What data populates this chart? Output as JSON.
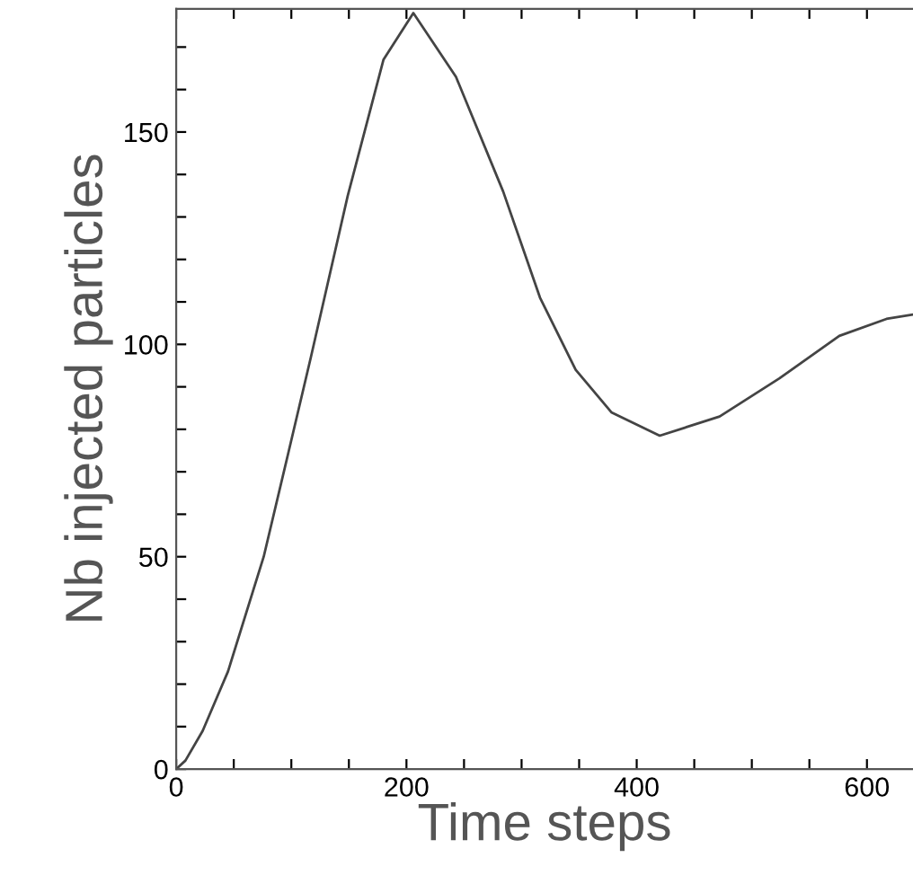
{
  "chart_data": {
    "type": "line",
    "xlabel": "Time steps",
    "ylabel": "Nb injected particles",
    "x": [
      0,
      8,
      23,
      45,
      76,
      97,
      117,
      149,
      180,
      206,
      243,
      284,
      316,
      347,
      378,
      420,
      472,
      524,
      576,
      617,
      639
    ],
    "series": [
      {
        "color": "#444444",
        "values": [
          0,
          2,
          9,
          23,
          50,
          74,
          97,
          135,
          167,
          178,
          163,
          136,
          111,
          94,
          84,
          78.5,
          83,
          92,
          102,
          106,
          107
        ]
      }
    ],
    "xlim": [
      0,
      640
    ],
    "ylim": [
      0,
      179
    ],
    "xticks": [
      0,
      {
        "value": 50,
        "label": null
      },
      {
        "value": 100,
        "label": null
      },
      {
        "value": 150,
        "label": null
      },
      200,
      {
        "value": 250,
        "label": null
      },
      {
        "value": 300,
        "label": null
      },
      {
        "value": 350,
        "label": null
      },
      400,
      {
        "value": 450,
        "label": null
      },
      {
        "value": 500,
        "label": null
      },
      {
        "value": 550,
        "label": null
      },
      600
    ],
    "yticks": [
      0,
      {
        "value": 10,
        "label": null
      },
      {
        "value": 20,
        "label": null
      },
      {
        "value": 30,
        "label": null
      },
      {
        "value": 40,
        "label": null
      },
      50,
      {
        "value": 60,
        "label": null
      },
      {
        "value": 70,
        "label": null
      },
      {
        "value": 80,
        "label": null
      },
      {
        "value": 90,
        "label": null
      },
      100,
      {
        "value": 110,
        "label": null
      },
      {
        "value": 120,
        "label": null
      },
      {
        "value": 130,
        "label": null
      },
      {
        "value": 140,
        "label": null
      },
      150,
      {
        "value": 160,
        "label": null
      },
      {
        "value": 170,
        "label": null
      }
    ],
    "grid": false,
    "legend": false,
    "marker": "none",
    "line_style": "solid"
  }
}
